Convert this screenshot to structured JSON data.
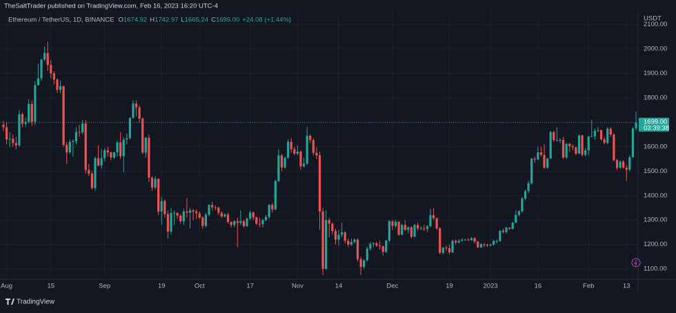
{
  "header": {
    "published": "TheSaltTrader published on TradingView.com, Feb 16, 2023 16:20 UTC-4",
    "symbol": "Ethereum / TetherUS, 1D, BINANCE",
    "ohlc": [
      {
        "key": "O",
        "value": "1674.92"
      },
      {
        "key": "H",
        "value": "1742.97"
      },
      {
        "key": "L",
        "value": "1665.24"
      },
      {
        "key": "C",
        "value": "1699.00"
      }
    ],
    "change": "+24.08 (+1.44%)"
  },
  "footer": {
    "brand": "TradingView"
  },
  "chart_data": {
    "type": "candlestick",
    "currency": "USDT",
    "last_price_label": "1699.00",
    "countdown": "03:39:38",
    "up_color": "#26a69a",
    "down_color": "#ef5350",
    "grid": true,
    "ylim": [
      1058,
      2144
    ],
    "yticks": [
      {
        "value": 1100,
        "label": "1100.00"
      },
      {
        "value": 1200,
        "label": "1200.00"
      },
      {
        "value": 1300,
        "label": "1300.00"
      },
      {
        "value": 1400,
        "label": "1400.00"
      },
      {
        "value": 1500,
        "label": "1500.00"
      },
      {
        "value": 1600,
        "label": "1600.00"
      },
      {
        "value": 1700,
        "label": "1700.00"
      },
      {
        "value": 1800,
        "label": "1800.00"
      },
      {
        "value": 1900,
        "label": "1900.00"
      },
      {
        "value": 2000,
        "label": "2000.00"
      },
      {
        "value": 2100,
        "label": "2100.00"
      }
    ],
    "categories": [
      null,
      "Aug",
      null,
      null,
      null,
      null,
      null,
      null,
      null,
      null,
      null,
      null,
      null,
      null,
      null,
      "15",
      null,
      null,
      null,
      null,
      null,
      null,
      null,
      null,
      null,
      null,
      null,
      null,
      null,
      null,
      null,
      null,
      "Sep",
      null,
      null,
      null,
      null,
      null,
      null,
      null,
      null,
      null,
      null,
      null,
      null,
      null,
      null,
      null,
      null,
      null,
      "19",
      null,
      null,
      null,
      null,
      null,
      null,
      null,
      null,
      null,
      null,
      null,
      "Oct",
      null,
      null,
      null,
      null,
      null,
      null,
      null,
      null,
      null,
      null,
      null,
      null,
      null,
      null,
      null,
      "17",
      null,
      null,
      null,
      null,
      null,
      null,
      null,
      null,
      null,
      null,
      null,
      null,
      null,
      null,
      "Nov",
      null,
      null,
      null,
      null,
      null,
      null,
      null,
      null,
      null,
      null,
      null,
      null,
      "14",
      null,
      null,
      null,
      null,
      null,
      null,
      null,
      null,
      null,
      null,
      null,
      null,
      null,
      null,
      null,
      null,
      "Dec",
      null,
      null,
      null,
      null,
      null,
      null,
      null,
      null,
      null,
      null,
      null,
      null,
      null,
      null,
      null,
      null,
      null,
      "19",
      null,
      null,
      null,
      null,
      null,
      null,
      null,
      null,
      null,
      null,
      null,
      null,
      "2023",
      null,
      null,
      null,
      null,
      null,
      null,
      null,
      null,
      null,
      null,
      null,
      null,
      null,
      null,
      "16",
      null,
      null,
      null,
      null,
      null,
      null,
      null,
      null,
      null,
      null,
      null,
      null,
      null,
      null,
      null,
      "Feb",
      null,
      null,
      null,
      null,
      null,
      null,
      null,
      null,
      null,
      null,
      null,
      "13",
      null,
      null,
      null
    ],
    "open": [
      1690,
      1680,
      1630,
      1633,
      1615,
      1606,
      1733,
      1694,
      1702,
      1775,
      1702,
      1852,
      1880,
      1957,
      1984,
      1935,
      1900,
      1875,
      1833,
      1848,
      1608,
      1577,
      1620,
      1622,
      1660,
      1659,
      1695,
      1505,
      1490,
      1431,
      1553,
      1523,
      1553,
      1586,
      1577,
      1556,
      1577,
      1618,
      1561,
      1629,
      1635,
      1718,
      1777,
      1761,
      1715,
      1576,
      1637,
      1473,
      1433,
      1469,
      1335,
      1378,
      1324,
      1253,
      1329,
      1330,
      1318,
      1295,
      1335,
      1330,
      1340,
      1335,
      1328,
      1310,
      1276,
      1322,
      1362,
      1352,
      1351,
      1330,
      1315,
      1322,
      1292,
      1280,
      1295,
      1288,
      1296,
      1275,
      1306,
      1331,
      1311,
      1285,
      1283,
      1300,
      1313,
      1362,
      1344,
      1460,
      1565,
      1515,
      1555,
      1620,
      1590,
      1572,
      1580,
      1520,
      1531,
      1645,
      1627,
      1575,
      1565,
      1335,
      1100,
      1300,
      1285,
      1255,
      1220,
      1240,
      1250,
      1215,
      1200,
      1210,
      1220,
      1140,
      1108,
      1135,
      1183,
      1203,
      1205,
      1196,
      1193,
      1170,
      1216,
      1295,
      1276,
      1293,
      1240,
      1280,
      1260,
      1270,
      1232,
      1280,
      1265,
      1266,
      1264,
      1275,
      1320,
      1308,
      1266,
      1166,
      1187,
      1185,
      1168,
      1215,
      1208,
      1216,
      1220,
      1220,
      1218,
      1226,
      1212,
      1189,
      1201,
      1199,
      1196,
      1200,
      1214,
      1214,
      1256,
      1251,
      1269,
      1264,
      1289,
      1321,
      1336,
      1388,
      1418,
      1451,
      1551,
      1548,
      1577,
      1567,
      1514,
      1552,
      1660,
      1627,
      1628,
      1628,
      1556,
      1612,
      1602,
      1598,
      1572,
      1646,
      1567,
      1585,
      1642,
      1643,
      1665,
      1668,
      1631,
      1616,
      1674,
      1650,
      1545,
      1514,
      1539,
      1515,
      1506,
      1557,
      1674.92
    ],
    "high": [
      1705,
      1700,
      1660,
      1650,
      1640,
      1750,
      1740,
      1720,
      1795,
      1790,
      1870,
      1940,
      1960,
      2010,
      2030,
      1955,
      1910,
      1880,
      1870,
      1850,
      1620,
      1630,
      1630,
      1680,
      1690,
      1710,
      1710,
      1530,
      1500,
      1560,
      1605,
      1590,
      1595,
      1600,
      1580,
      1580,
      1625,
      1660,
      1640,
      1655,
      1720,
      1790,
      1790,
      1770,
      1720,
      1640,
      1650,
      1480,
      1480,
      1470,
      1395,
      1385,
      1340,
      1350,
      1340,
      1330,
      1325,
      1345,
      1390,
      1350,
      1345,
      1345,
      1335,
      1315,
      1330,
      1365,
      1375,
      1360,
      1355,
      1335,
      1328,
      1330,
      1295,
      1300,
      1310,
      1340,
      1300,
      1310,
      1340,
      1335,
      1315,
      1310,
      1305,
      1320,
      1365,
      1370,
      1465,
      1590,
      1570,
      1560,
      1630,
      1635,
      1600,
      1605,
      1585,
      1555,
      1680,
      1650,
      1635,
      1600,
      1580,
      1350,
      1340,
      1310,
      1290,
      1265,
      1260,
      1290,
      1255,
      1225,
      1225,
      1225,
      1225,
      1150,
      1140,
      1190,
      1210,
      1210,
      1210,
      1215,
      1195,
      1220,
      1300,
      1300,
      1300,
      1295,
      1285,
      1300,
      1275,
      1275,
      1285,
      1290,
      1275,
      1280,
      1280,
      1345,
      1350,
      1310,
      1270,
      1190,
      1195,
      1200,
      1220,
      1220,
      1222,
      1225,
      1223,
      1225,
      1230,
      1230,
      1215,
      1205,
      1205,
      1202,
      1202,
      1220,
      1220,
      1260,
      1265,
      1272,
      1270,
      1292,
      1340,
      1340,
      1395,
      1425,
      1460,
      1555,
      1560,
      1600,
      1600,
      1610,
      1555,
      1665,
      1665,
      1680,
      1635,
      1640,
      1615,
      1615,
      1610,
      1600,
      1650,
      1650,
      1595,
      1645,
      1710,
      1675,
      1680,
      1670,
      1640,
      1680,
      1680,
      1655,
      1550,
      1545,
      1545,
      1525,
      1565,
      1680,
      1742.97
    ],
    "low": [
      1665,
      1610,
      1600,
      1600,
      1590,
      1600,
      1680,
      1680,
      1695,
      1685,
      1690,
      1850,
      1870,
      1950,
      1910,
      1880,
      1855,
      1820,
      1820,
      1600,
      1530,
      1570,
      1560,
      1610,
      1640,
      1650,
      1490,
      1480,
      1425,
      1420,
      1520,
      1510,
      1540,
      1560,
      1545,
      1550,
      1560,
      1550,
      1495,
      1610,
      1630,
      1715,
      1725,
      1700,
      1570,
      1555,
      1455,
      1420,
      1425,
      1320,
      1280,
      1310,
      1225,
      1240,
      1280,
      1305,
      1285,
      1280,
      1310,
      1265,
      1300,
      1305,
      1305,
      1265,
      1270,
      1315,
      1340,
      1340,
      1320,
      1308,
      1310,
      1285,
      1270,
      1270,
      1190,
      1280,
      1270,
      1272,
      1300,
      1300,
      1280,
      1270,
      1270,
      1295,
      1305,
      1330,
      1340,
      1455,
      1500,
      1510,
      1550,
      1575,
      1565,
      1565,
      1505,
      1515,
      1525,
      1615,
      1565,
      1550,
      1260,
      1075,
      1100,
      1230,
      1240,
      1200,
      1195,
      1230,
      1205,
      1190,
      1195,
      1205,
      1130,
      1075,
      1100,
      1130,
      1175,
      1190,
      1190,
      1180,
      1155,
      1165,
      1210,
      1260,
      1270,
      1235,
      1238,
      1255,
      1245,
      1225,
      1230,
      1255,
      1260,
      1255,
      1250,
      1270,
      1300,
      1260,
      1160,
      1160,
      1175,
      1160,
      1165,
      1200,
      1205,
      1210,
      1215,
      1214,
      1215,
      1205,
      1185,
      1185,
      1190,
      1190,
      1192,
      1195,
      1205,
      1212,
      1245,
      1245,
      1260,
      1262,
      1288,
      1315,
      1330,
      1380,
      1410,
      1445,
      1535,
      1545,
      1560,
      1510,
      1510,
      1550,
      1620,
      1620,
      1615,
      1550,
      1550,
      1580,
      1585,
      1565,
      1570,
      1560,
      1560,
      1565,
      1640,
      1630,
      1660,
      1625,
      1610,
      1610,
      1640,
      1540,
      1505,
      1510,
      1510,
      1460,
      1500,
      1555,
      1665.24
    ],
    "close": [
      1680,
      1630,
      1633,
      1615,
      1606,
      1733,
      1694,
      1702,
      1775,
      1702,
      1852,
      1880,
      1957,
      1984,
      1935,
      1900,
      1875,
      1833,
      1848,
      1608,
      1577,
      1620,
      1622,
      1660,
      1659,
      1695,
      1505,
      1490,
      1431,
      1553,
      1523,
      1553,
      1586,
      1577,
      1556,
      1577,
      1618,
      1561,
      1629,
      1635,
      1718,
      1777,
      1761,
      1715,
      1576,
      1637,
      1473,
      1433,
      1469,
      1335,
      1378,
      1324,
      1253,
      1329,
      1330,
      1318,
      1295,
      1335,
      1330,
      1340,
      1335,
      1328,
      1310,
      1276,
      1322,
      1362,
      1352,
      1351,
      1330,
      1315,
      1322,
      1292,
      1280,
      1295,
      1288,
      1296,
      1275,
      1306,
      1331,
      1311,
      1285,
      1283,
      1300,
      1313,
      1362,
      1344,
      1460,
      1565,
      1515,
      1555,
      1620,
      1590,
      1572,
      1580,
      1520,
      1531,
      1645,
      1627,
      1575,
      1565,
      1335,
      1100,
      1300,
      1285,
      1255,
      1220,
      1240,
      1250,
      1215,
      1200,
      1210,
      1220,
      1140,
      1108,
      1135,
      1183,
      1203,
      1205,
      1196,
      1193,
      1170,
      1216,
      1295,
      1276,
      1293,
      1240,
      1280,
      1260,
      1270,
      1232,
      1280,
      1265,
      1266,
      1264,
      1275,
      1320,
      1308,
      1266,
      1166,
      1187,
      1185,
      1168,
      1215,
      1208,
      1216,
      1220,
      1220,
      1218,
      1226,
      1212,
      1189,
      1201,
      1199,
      1196,
      1200,
      1214,
      1214,
      1256,
      1251,
      1269,
      1264,
      1289,
      1321,
      1336,
      1388,
      1418,
      1451,
      1551,
      1548,
      1577,
      1567,
      1514,
      1552,
      1660,
      1627,
      1628,
      1628,
      1556,
      1612,
      1602,
      1598,
      1572,
      1646,
      1567,
      1585,
      1642,
      1643,
      1665,
      1668,
      1631,
      1616,
      1674,
      1650,
      1545,
      1514,
      1539,
      1515,
      1506,
      1557,
      1674.92,
      1699
    ]
  }
}
